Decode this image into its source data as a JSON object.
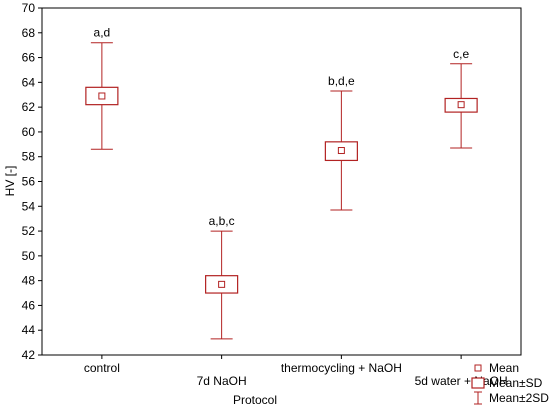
{
  "chart_data": {
    "type": "box",
    "xlabel": "Protocol",
    "ylabel": "HV [-]",
    "ylim": [
      42,
      70
    ],
    "yticks": [
      42,
      44,
      46,
      48,
      50,
      52,
      54,
      56,
      58,
      60,
      62,
      64,
      66,
      68,
      70
    ],
    "categories": [
      "control",
      "7d NaOH",
      "thermocycling + NaOH",
      "5d water + NaOH"
    ],
    "series": [
      {
        "category": "control",
        "mean": 62.9,
        "mean_minus_se": 62.2,
        "mean_plus_se": 63.6,
        "mean_minus_2sd": 58.6,
        "mean_plus_2sd": 67.2,
        "annotation": "a,d"
      },
      {
        "category": "7d NaOH",
        "mean": 47.7,
        "mean_minus_se": 47.0,
        "mean_plus_se": 48.4,
        "mean_minus_2sd": 43.3,
        "mean_plus_2sd": 52.0,
        "annotation": "a,b,c"
      },
      {
        "category": "thermocycling + NaOH",
        "mean": 58.5,
        "mean_minus_se": 57.7,
        "mean_plus_se": 59.2,
        "mean_minus_2sd": 53.7,
        "mean_plus_2sd": 63.3,
        "annotation": "b,d,e"
      },
      {
        "category": "5d water + NaOH",
        "mean": 62.2,
        "mean_minus_se": 61.6,
        "mean_plus_se": 62.7,
        "mean_minus_2sd": 58.7,
        "mean_plus_2sd": 65.5,
        "annotation": "c,e"
      }
    ],
    "legend": {
      "position": "bottom-right",
      "items": [
        "Mean",
        "Mean±SD",
        "Mean±2SD"
      ]
    },
    "colors": {
      "series": "#b22222",
      "axis": "#000000"
    },
    "grid": false
  }
}
